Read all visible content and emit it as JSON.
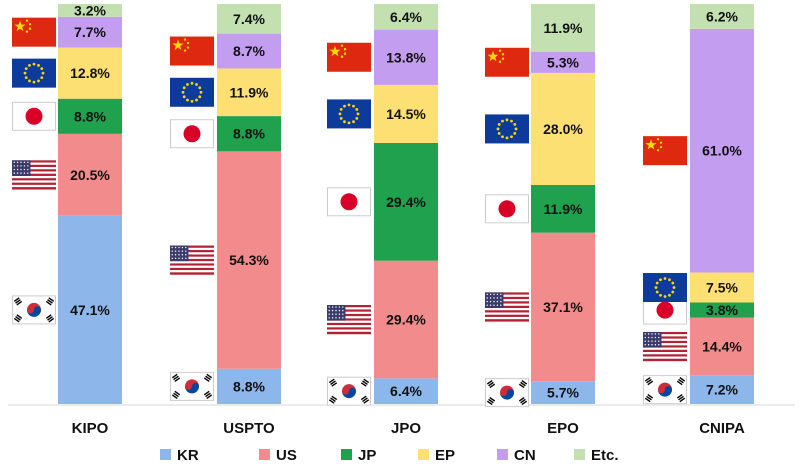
{
  "chart_data": {
    "type": "bar",
    "stacked": true,
    "categories": [
      "KIPO",
      "USPTO",
      "JPO",
      "EPO",
      "CNIPA"
    ],
    "series": [
      {
        "name": "KR",
        "values": [
          47.1,
          8.8,
          6.4,
          5.7,
          7.2
        ],
        "labels": [
          "47.1%",
          "8.8%",
          "6.4%",
          "5.7%",
          "7.2%"
        ]
      },
      {
        "name": "US",
        "values": [
          20.5,
          54.3,
          29.4,
          37.1,
          14.4
        ],
        "labels": [
          "20.5%",
          "54.3%",
          "29.4%",
          "37.1%",
          "14.4%"
        ]
      },
      {
        "name": "JP",
        "values": [
          8.8,
          8.8,
          29.4,
          11.9,
          3.8
        ],
        "labels": [
          "8.8%",
          "8.8%",
          "29.4%",
          "11.9%",
          "3.8%"
        ]
      },
      {
        "name": "EP",
        "values": [
          12.8,
          11.9,
          14.5,
          28.0,
          7.5
        ],
        "labels": [
          "12.8%",
          "11.9%",
          "14.5%",
          "28.0%",
          "7.5%"
        ]
      },
      {
        "name": "CN",
        "values": [
          7.7,
          8.7,
          13.8,
          5.3,
          61.0
        ],
        "labels": [
          "7.7%",
          "8.7%",
          "13.8%",
          "5.3%",
          "61.0%"
        ]
      },
      {
        "name": "Etc.",
        "values": [
          3.2,
          7.4,
          6.4,
          11.9,
          6.2
        ],
        "labels": [
          "3.2%",
          "7.4%",
          "6.4%",
          "11.9%",
          "6.2%"
        ]
      }
    ],
    "colors": {
      "KR": "#8db6ea",
      "US": "#f28b8b",
      "JP": "#1fa14d",
      "EP": "#fde073",
      "CN": "#c39df0",
      "Etc.": "#c3e0b0"
    },
    "flags": {
      "KR": "korea-flag-icon",
      "US": "usa-flag-icon",
      "JP": "japan-flag-icon",
      "EP": "eu-flag-icon",
      "CN": "china-flag-icon"
    },
    "ylim": [
      0,
      100
    ],
    "grid": false,
    "legend": "bottom",
    "title": "",
    "xlabel": "",
    "ylabel": ""
  }
}
